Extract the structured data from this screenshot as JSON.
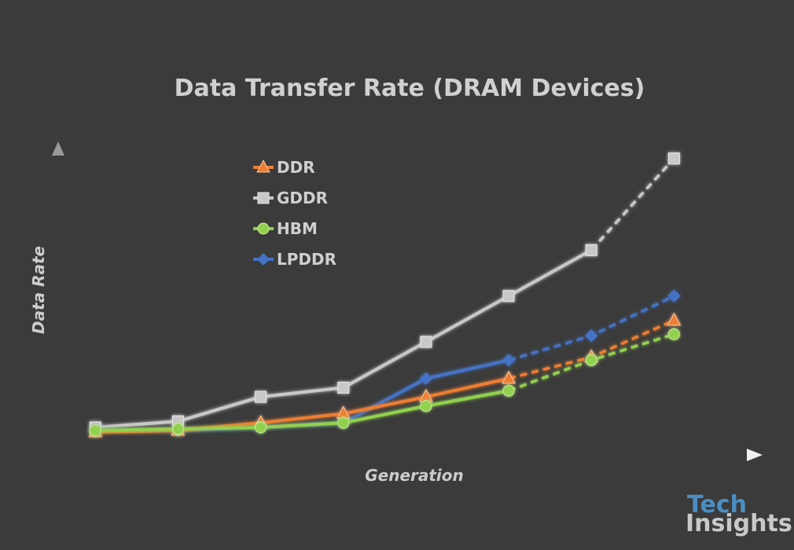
{
  "chart_data": {
    "type": "line",
    "title": "Data Transfer Rate (DRAM Devices)",
    "xlabel": "Generation",
    "ylabel": "Data Rate",
    "x": [
      1,
      2,
      3,
      4,
      5,
      6,
      7,
      8
    ],
    "xlim": [
      0.55,
      8.9
    ],
    "ylim": [
      0,
      100
    ],
    "grid": false,
    "legend": "upper-left",
    "series": [
      {
        "name": "GDDR",
        "color": "#c8c8c8",
        "marker": "square",
        "values": [
          9,
          11,
          19,
          22,
          37,
          52,
          67,
          97
        ],
        "projected_from_index": 6
      },
      {
        "name": "LPDDR",
        "color": "#4472c4",
        "marker": "diamond",
        "values": [
          8,
          8,
          9,
          10.5,
          25,
          31,
          39,
          52
        ],
        "projected_from_index": 5
      },
      {
        "name": "DDR",
        "color": "#ed7d31",
        "marker": "triangle",
        "values": [
          7.5,
          8,
          10.5,
          13.5,
          19,
          25,
          32,
          44
        ],
        "projected_from_index": 5
      },
      {
        "name": "HBM",
        "color": "#92d050",
        "marker": "circle",
        "values": [
          8,
          8.5,
          9,
          10.5,
          16,
          21,
          31,
          39.5
        ],
        "projected_from_index": 5
      }
    ]
  },
  "legend_order": [
    "DDR",
    "GDDR",
    "HBM",
    "LPDDR"
  ],
  "logo": {
    "line1": "Tech",
    "line2": "Insights",
    "color1": "#4a8fc4",
    "color2": "#c9c9c9"
  },
  "axis_color": "#e0e0e0",
  "background": "#3b3b3b"
}
